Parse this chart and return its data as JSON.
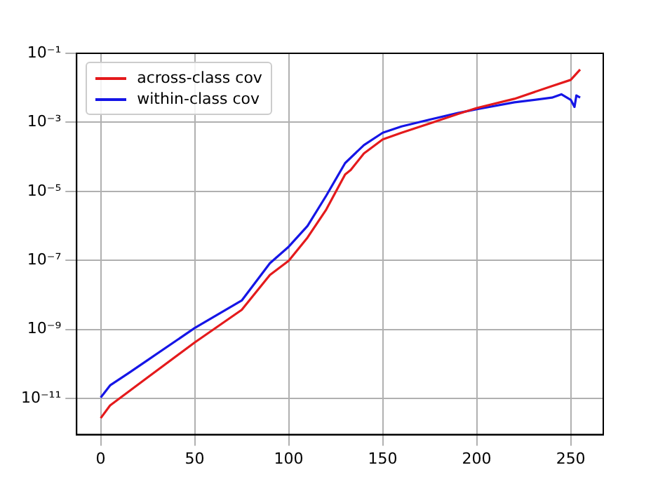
{
  "chart_data": {
    "type": "line",
    "log": "y",
    "grid": true,
    "legend": "top left",
    "line_style": "solid",
    "marker": "none",
    "xlim": [
      -12.8,
      267.3
    ],
    "xticks": [
      0,
      50,
      100,
      150,
      200,
      250
    ],
    "ylim": [
      9e-13,
      0.1
    ],
    "yticks": [
      {
        "value": 1e-11,
        "label": "10⁻¹¹"
      },
      {
        "value": 1e-09,
        "label": "10⁻⁹"
      },
      {
        "value": 1e-07,
        "label": "10⁻⁷"
      },
      {
        "value": 1e-05,
        "label": "10⁻⁵"
      },
      {
        "value": 0.001,
        "label": "10⁻³"
      },
      {
        "value": 0.1,
        "label": "10⁻¹"
      }
    ],
    "series": [
      {
        "name": "across-class cov",
        "color": "#e41a1c",
        "x": [
          0,
          5,
          15,
          25,
          50,
          75,
          90,
          100,
          110,
          120,
          130,
          133,
          140,
          150,
          160,
          175,
          190,
          200,
          220,
          240,
          250,
          255
        ],
        "values": [
          2.7e-12,
          6.3e-12,
          1.6e-11,
          4.1e-11,
          4.2e-10,
          3.7e-09,
          3.8e-08,
          9.8e-08,
          4.6e-07,
          3e-06,
          3.1e-05,
          4.2e-05,
          0.000126,
          0.00032,
          0.0005,
          0.00093,
          0.00174,
          0.0026,
          0.0048,
          0.0112,
          0.017,
          0.034
        ]
      },
      {
        "name": "within-class cov",
        "color": "#1515e6",
        "x": [
          0,
          5,
          15,
          25,
          50,
          75,
          90,
          100,
          110,
          120,
          130,
          140,
          150,
          160,
          175,
          190,
          200,
          220,
          240,
          245,
          250,
          252,
          253,
          255
        ],
        "values": [
          1.07e-11,
          2.4e-11,
          5.5e-11,
          1.3e-10,
          1.1e-09,
          6.9e-09,
          8.3e-08,
          2.5e-07,
          1e-06,
          7.6e-06,
          6.6e-05,
          0.00022,
          0.0005,
          0.00076,
          0.0012,
          0.00186,
          0.0024,
          0.0038,
          0.0052,
          0.0065,
          0.0045,
          0.0028,
          0.006,
          0.0052
        ]
      }
    ]
  }
}
